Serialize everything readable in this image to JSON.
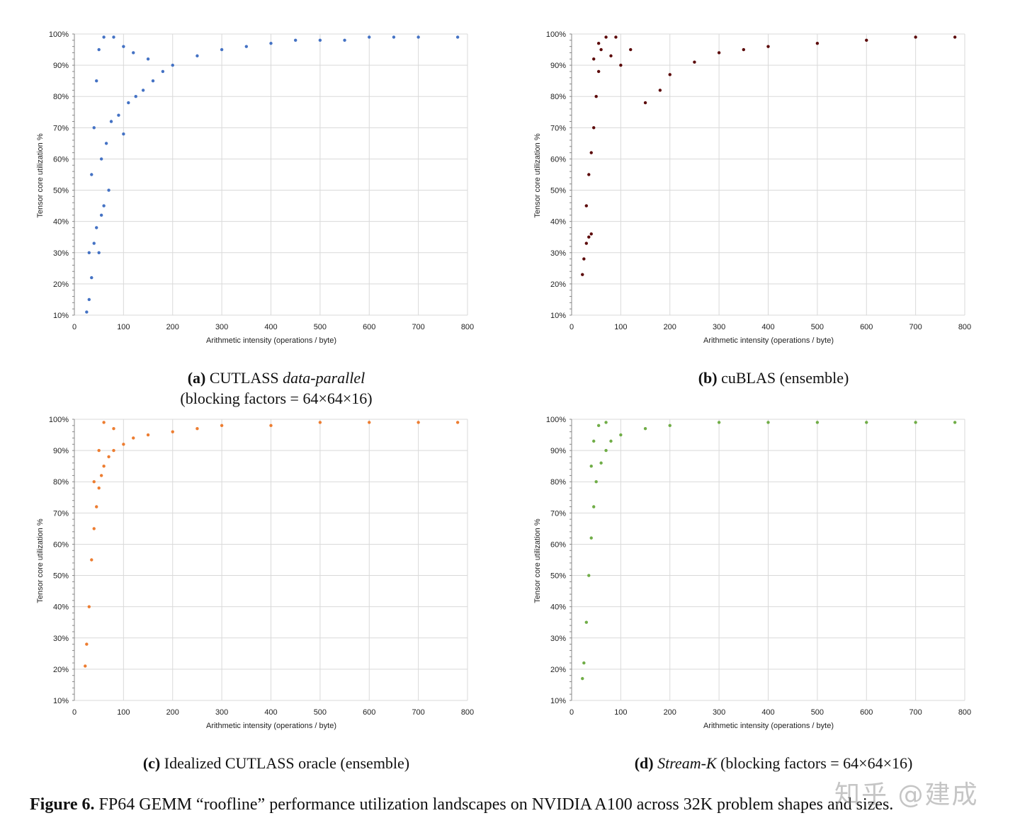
{
  "figure": {
    "label": "Figure 6.",
    "text": "FP64 GEMM “roofline” performance utilization landscapes on NVIDIA A100 across 32K problem shapes and sizes."
  },
  "watermark": "知乎 @建成",
  "chart_data": [
    {
      "id": "a",
      "type": "scatter",
      "color": "#4472c4",
      "xlabel": "Arithmetic intensity (operations / byte)",
      "ylabel": "Tensor core utilization %",
      "xlim": [
        0,
        800
      ],
      "ylim": [
        10,
        100
      ],
      "xticks": [
        "0",
        "100",
        "200",
        "300",
        "400",
        "500",
        "600",
        "700",
        "800"
      ],
      "yticks": [
        "10%",
        "20%",
        "30%",
        "40%",
        "50%",
        "60%",
        "70%",
        "80%",
        "90%",
        "100%"
      ],
      "grid": true,
      "caption": {
        "label": "(a)",
        "text": "CUTLASS",
        "italic": "data-parallel",
        "line2": "(blocking factors = 64×64×16)"
      },
      "points": [
        [
          25,
          11
        ],
        [
          30,
          15
        ],
        [
          35,
          22
        ],
        [
          30,
          30
        ],
        [
          40,
          33
        ],
        [
          45,
          38
        ],
        [
          55,
          42
        ],
        [
          60,
          45
        ],
        [
          70,
          50
        ],
        [
          50,
          30
        ],
        [
          55,
          60
        ],
        [
          65,
          65
        ],
        [
          75,
          72
        ],
        [
          90,
          74
        ],
        [
          100,
          68
        ],
        [
          110,
          78
        ],
        [
          125,
          80
        ],
        [
          140,
          82
        ],
        [
          160,
          85
        ],
        [
          180,
          88
        ],
        [
          200,
          90
        ],
        [
          250,
          93
        ],
        [
          300,
          95
        ],
        [
          350,
          96
        ],
        [
          400,
          97
        ],
        [
          450,
          98
        ],
        [
          500,
          98
        ],
        [
          550,
          98
        ],
        [
          600,
          99
        ],
        [
          650,
          99
        ],
        [
          700,
          99
        ],
        [
          780,
          99
        ],
        [
          35,
          55
        ],
        [
          40,
          70
        ],
        [
          45,
          85
        ],
        [
          50,
          95
        ],
        [
          60,
          99
        ],
        [
          80,
          99
        ],
        [
          100,
          96
        ],
        [
          120,
          94
        ],
        [
          150,
          92
        ]
      ]
    },
    {
      "id": "b",
      "type": "scatter",
      "color": "#5c0a0a",
      "xlabel": "Arithmetic intensity (operations / byte)",
      "ylabel": "Tensor core utilization %",
      "xlim": [
        0,
        800
      ],
      "ylim": [
        10,
        100
      ],
      "xticks": [
        "0",
        "100",
        "200",
        "300",
        "400",
        "500",
        "600",
        "700",
        "800"
      ],
      "yticks": [
        "10%",
        "20%",
        "30%",
        "40%",
        "50%",
        "60%",
        "70%",
        "80%",
        "90%",
        "100%"
      ],
      "grid": true,
      "caption": {
        "label": "(b)",
        "text": "cuBLAS (ensemble)"
      },
      "points": [
        [
          22,
          23
        ],
        [
          25,
          28
        ],
        [
          30,
          33
        ],
        [
          35,
          35
        ],
        [
          40,
          36
        ],
        [
          30,
          45
        ],
        [
          35,
          55
        ],
        [
          40,
          62
        ],
        [
          45,
          70
        ],
        [
          50,
          80
        ],
        [
          55,
          88
        ],
        [
          60,
          95
        ],
        [
          70,
          99
        ],
        [
          90,
          99
        ],
        [
          120,
          95
        ],
        [
          150,
          78
        ],
        [
          180,
          82
        ],
        [
          200,
          87
        ],
        [
          250,
          91
        ],
        [
          300,
          94
        ],
        [
          350,
          95
        ],
        [
          400,
          96
        ],
        [
          500,
          97
        ],
        [
          600,
          98
        ],
        [
          700,
          99
        ],
        [
          780,
          99
        ],
        [
          45,
          92
        ],
        [
          55,
          97
        ],
        [
          80,
          93
        ],
        [
          100,
          90
        ]
      ]
    },
    {
      "id": "c",
      "type": "scatter",
      "color": "#ed7d31",
      "xlabel": "Arithmetic intensity (operations / byte)",
      "ylabel": "Tensor core utilization %",
      "xlim": [
        0,
        800
      ],
      "ylim": [
        10,
        100
      ],
      "xticks": [
        "0",
        "100",
        "200",
        "300",
        "400",
        "500",
        "600",
        "700",
        "800"
      ],
      "yticks": [
        "10%",
        "20%",
        "30%",
        "40%",
        "50%",
        "60%",
        "70%",
        "80%",
        "90%",
        "100%"
      ],
      "grid": true,
      "caption": {
        "label": "(c)",
        "text": "Idealized CUTLASS oracle (ensemble)"
      },
      "points": [
        [
          22,
          21
        ],
        [
          25,
          28
        ],
        [
          30,
          40
        ],
        [
          35,
          55
        ],
        [
          40,
          65
        ],
        [
          45,
          72
        ],
        [
          50,
          78
        ],
        [
          55,
          82
        ],
        [
          60,
          85
        ],
        [
          70,
          88
        ],
        [
          80,
          90
        ],
        [
          100,
          92
        ],
        [
          120,
          94
        ],
        [
          150,
          95
        ],
        [
          200,
          96
        ],
        [
          250,
          97
        ],
        [
          300,
          98
        ],
        [
          400,
          98
        ],
        [
          500,
          99
        ],
        [
          600,
          99
        ],
        [
          700,
          99
        ],
        [
          780,
          99
        ],
        [
          40,
          80
        ],
        [
          50,
          90
        ],
        [
          60,
          99
        ],
        [
          80,
          97
        ]
      ]
    },
    {
      "id": "d",
      "type": "scatter",
      "color": "#70ad47",
      "xlabel": "Arithmetic intensity (operations / byte)",
      "ylabel": "Tensor core utilization %",
      "xlim": [
        0,
        800
      ],
      "ylim": [
        10,
        100
      ],
      "xticks": [
        "0",
        "100",
        "200",
        "300",
        "400",
        "500",
        "600",
        "700",
        "800"
      ],
      "yticks": [
        "10%",
        "20%",
        "30%",
        "40%",
        "50%",
        "60%",
        "70%",
        "80%",
        "90%",
        "100%"
      ],
      "grid": true,
      "caption": {
        "label": "(d)",
        "italic": "Stream-K",
        "text": "(blocking factors = 64×64×16)"
      },
      "points": [
        [
          22,
          17
        ],
        [
          25,
          22
        ],
        [
          30,
          35
        ],
        [
          35,
          50
        ],
        [
          40,
          62
        ],
        [
          45,
          72
        ],
        [
          50,
          80
        ],
        [
          60,
          86
        ],
        [
          70,
          90
        ],
        [
          80,
          93
        ],
        [
          100,
          95
        ],
        [
          150,
          97
        ],
        [
          200,
          98
        ],
        [
          300,
          99
        ],
        [
          400,
          99
        ],
        [
          500,
          99
        ],
        [
          600,
          99
        ],
        [
          700,
          99
        ],
        [
          780,
          99
        ],
        [
          40,
          85
        ],
        [
          45,
          93
        ],
        [
          55,
          98
        ],
        [
          70,
          99
        ]
      ]
    }
  ]
}
